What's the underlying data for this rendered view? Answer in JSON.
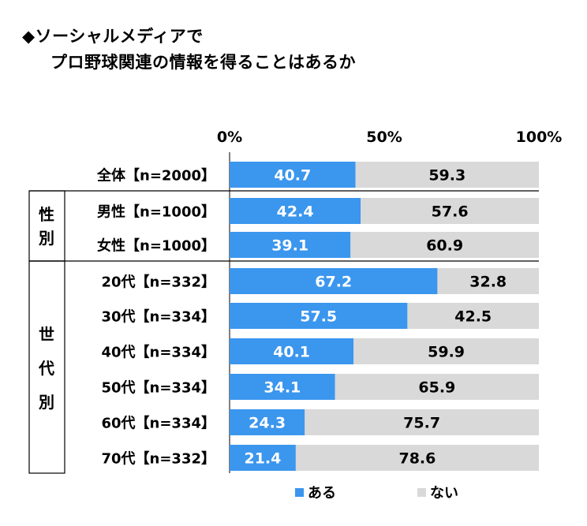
{
  "title_line1": "◆ソーシャルメディアで",
  "title_line2": "プロ野球関連の情報を得ることはあるか",
  "chart_data": {
    "type": "bar",
    "orientation": "horizontal",
    "stacked": true,
    "percent": true,
    "xlim": [
      0,
      100
    ],
    "ticks": [
      "0%",
      "50%",
      "100%"
    ],
    "categories": [
      "全体【n=2000】",
      "男性【n=1000】",
      "女性【n=1000】",
      "20代【n=332】",
      "30代【n=334】",
      "40代【n=334】",
      "50代【n=334】",
      "60代【n=334】",
      "70代【n=332】"
    ],
    "groups": [
      {
        "label": "性別",
        "categories": [
          "男性【n=1000】",
          "女性【n=1000】"
        ]
      },
      {
        "label": "世代別",
        "categories": [
          "20代【n=332】",
          "30代【n=334】",
          "40代【n=334】",
          "50代【n=334】",
          "60代【n=334】",
          "70代【n=332】"
        ]
      }
    ],
    "series": [
      {
        "name": "ある",
        "values": [
          40.7,
          42.4,
          39.1,
          67.2,
          57.5,
          40.1,
          34.1,
          24.3,
          21.4
        ]
      },
      {
        "name": "ない",
        "values": [
          59.3,
          57.6,
          60.9,
          32.8,
          42.5,
          59.9,
          65.9,
          75.7,
          78.6
        ]
      }
    ],
    "legend_position": "bottom",
    "colors": {
      "ある": "#3b96ee",
      "ない": "#d9d9d9"
    }
  }
}
